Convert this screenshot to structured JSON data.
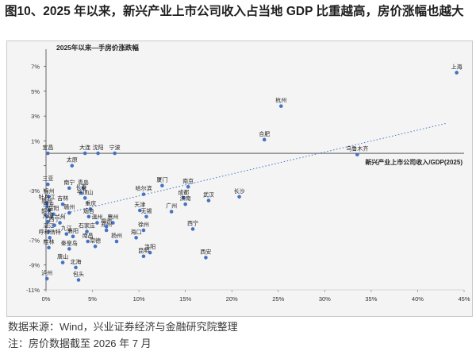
{
  "figure_title": "图10、2025 年以来，新兴产业上市公司收入占当地 GDP 比重越高，房价涨幅也越大",
  "footnotes": {
    "source": "数据来源：Wind，兴业证券经济与金融研究院整理",
    "note": "注：房价数据截至 2026 年 7 月"
  },
  "colors": {
    "point": "#4472c4",
    "trendline": "#4472c4",
    "axis": "#404040",
    "grid": "#e2e2e2",
    "panel_bg": "#f4f4f4"
  },
  "chart_data": {
    "type": "scatter",
    "title": "2025年以来—手房价涨跌幅",
    "xlabel": "新兴产业上市公司收入/GDP(2025)",
    "ylabel": "",
    "xlim": [
      0,
      45
    ],
    "ylim": [
      -11,
      8
    ],
    "x_ticks": [
      0,
      5,
      10,
      15,
      20,
      25,
      30,
      35,
      40,
      45
    ],
    "x_tick_labels": [
      "0%",
      "5%",
      "10%",
      "15%",
      "20%",
      "25%",
      "30%",
      "35%",
      "40%",
      "45%"
    ],
    "y_ticks": [
      7,
      5,
      3,
      1,
      -1,
      -3,
      -5,
      -7,
      -9,
      -11
    ],
    "y_tick_labels": [
      "7%",
      "5%",
      "3%",
      "1%",
      "",
      "-3%",
      "",
      "-7%",
      "-9%",
      "-11%"
    ],
    "x_axis_at_y": 0,
    "grid": false,
    "trendline": {
      "x": [
        0,
        43
      ],
      "y": [
        -5.2,
        2.4
      ]
    },
    "points": [
      {
        "label": "上海",
        "x": 44.2,
        "y": 6.5
      },
      {
        "label": "杭州",
        "x": 25.3,
        "y": 3.8
      },
      {
        "label": "合肥",
        "x": 23.5,
        "y": 1.1
      },
      {
        "label": "乌鲁木齐",
        "x": 33.5,
        "y": -0.1
      },
      {
        "label": "宜昌",
        "x": 0.2,
        "y": 0.0
      },
      {
        "label": "大连",
        "x": 4.2,
        "y": 0.0
      },
      {
        "label": "沈阳",
        "x": 5.6,
        "y": 0.0
      },
      {
        "label": "宁波",
        "x": 7.4,
        "y": 0.0
      },
      {
        "label": "太原",
        "x": 2.8,
        "y": -1.0
      },
      {
        "label": "三亚",
        "x": 0.2,
        "y": -2.5
      },
      {
        "label": "南宁",
        "x": 2.5,
        "y": -2.8
      },
      {
        "label": "青岛",
        "x": 4.0,
        "y": -2.8
      },
      {
        "label": "长春",
        "x": 3.8,
        "y": -3.2
      },
      {
        "label": "平顶山",
        "x": 4.2,
        "y": -3.6
      },
      {
        "label": "锦州",
        "x": 0.3,
        "y": -3.5
      },
      {
        "label": "牡丹江",
        "x": 0.1,
        "y": -4.0
      },
      {
        "label": "吉林",
        "x": 1.8,
        "y": -4.1
      },
      {
        "label": "泉州",
        "x": 0.1,
        "y": -4.3
      },
      {
        "label": "丹东",
        "x": 0.3,
        "y": -4.6
      },
      {
        "label": "赣州",
        "x": 2.5,
        "y": -4.8
      },
      {
        "label": "韶关",
        "x": 0.1,
        "y": -5.1
      },
      {
        "label": "岳阳",
        "x": 0.8,
        "y": -4.9
      },
      {
        "label": "大理",
        "x": 0.2,
        "y": -5.5
      },
      {
        "label": "兰州",
        "x": 1.5,
        "y": -5.6
      },
      {
        "label": "西宁",
        "x": 0.9,
        "y": -5.8
      },
      {
        "label": "湛江",
        "x": 0.3,
        "y": -6.3
      },
      {
        "label": "呼和浩特",
        "x": 0.4,
        "y": -6.8
      },
      {
        "label": "桂林",
        "x": 0.3,
        "y": -7.6
      },
      {
        "label": "秦皇岛",
        "x": 2.5,
        "y": -7.7
      },
      {
        "label": "唐山",
        "x": 1.8,
        "y": -8.8
      },
      {
        "label": "北海",
        "x": 3.2,
        "y": -9.2
      },
      {
        "label": "泸州",
        "x": 0.1,
        "y": -10.1
      },
      {
        "label": "包头",
        "x": 3.5,
        "y": -10.2
      },
      {
        "label": "九江",
        "x": 2.2,
        "y": -6.5
      },
      {
        "label": "襄阳",
        "x": 2.9,
        "y": -6.7
      },
      {
        "label": "石家庄",
        "x": 4.4,
        "y": -6.3
      },
      {
        "label": "郑州",
        "x": 6.5,
        "y": -6.2
      },
      {
        "label": "南昌",
        "x": 4.5,
        "y": -7.1
      },
      {
        "label": "常德",
        "x": 5.3,
        "y": -7.5
      },
      {
        "label": "扬州",
        "x": 7.6,
        "y": -7.1
      },
      {
        "label": "重庆",
        "x": 4.8,
        "y": -4.5
      },
      {
        "label": "烟台",
        "x": 4.6,
        "y": -5.1
      },
      {
        "label": "惠州",
        "x": 7.2,
        "y": -5.6
      },
      {
        "label": "福州",
        "x": 6.5,
        "y": -5.9
      },
      {
        "label": "温州",
        "x": 5.5,
        "y": -5.6
      },
      {
        "label": "天津",
        "x": 10.1,
        "y": -4.6
      },
      {
        "label": "无锡",
        "x": 10.8,
        "y": -5.1
      },
      {
        "label": "哈尔滨",
        "x": 10.5,
        "y": -3.3
      },
      {
        "label": "厦门",
        "x": 12.5,
        "y": -2.6
      },
      {
        "label": "南京",
        "x": 15.3,
        "y": -2.7
      },
      {
        "label": "成都",
        "x": 14.8,
        "y": -3.6
      },
      {
        "label": "武汉",
        "x": 17.5,
        "y": -3.8
      },
      {
        "label": "济南",
        "x": 15.0,
        "y": -4.1
      },
      {
        "label": "广州",
        "x": 13.5,
        "y": -4.7
      },
      {
        "label": "长沙",
        "x": 20.8,
        "y": -3.5
      },
      {
        "label": "徐州",
        "x": 10.5,
        "y": -6.2
      },
      {
        "label": "海口",
        "x": 9.7,
        "y": -6.8
      },
      {
        "label": "西宁",
        "x": 15.8,
        "y": -6.1
      },
      {
        "label": "昆明",
        "x": 10.5,
        "y": -8.3
      },
      {
        "label": "洛阳",
        "x": 11.2,
        "y": -8.0
      },
      {
        "label": "西安",
        "x": 17.2,
        "y": -8.4
      }
    ]
  }
}
